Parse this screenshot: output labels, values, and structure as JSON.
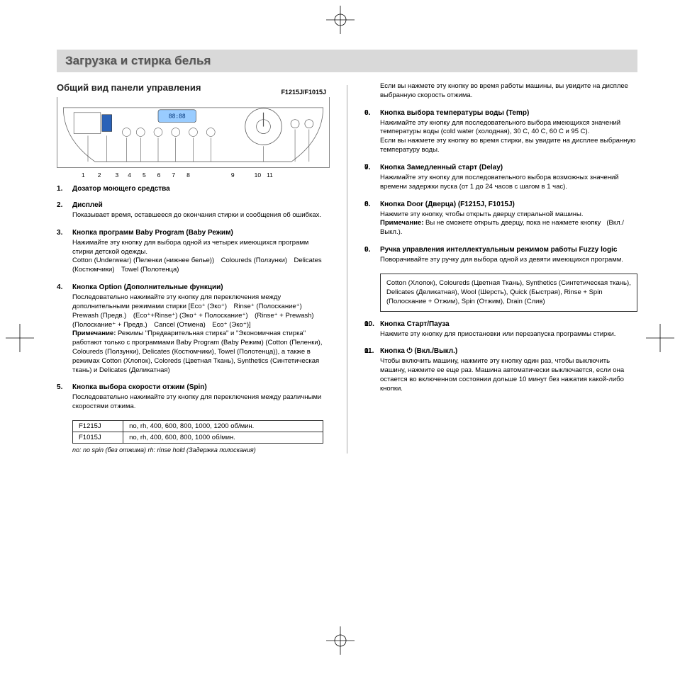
{
  "banner_title": "Загрузка и стирка белья",
  "subtitle": "Общий вид панели управления",
  "model_label": "F1215J/F1015J",
  "callout_numbers": [
    "1",
    "2",
    "3",
    "4",
    "5",
    "6",
    "7",
    "8",
    "9",
    "10",
    "11"
  ],
  "left_items": [
    {
      "title": "Дозатор моющего средства",
      "body": ""
    },
    {
      "title": "Дисплей",
      "body": "Показывает время, оставшееся до окончания стирки и сообщения об ошибках."
    },
    {
      "title": "Кнопка программ Baby Program (Baby Режим)",
      "body": "Нажимайте эту кнопку для выбора одной из четырех имеющихся программ стирки детской одежды.\nCotton (Underwear) (Пеленки (нижнее белье)) Coloureds (Ползунки) Delicates (Костюмчики) Towel (Полотенца)"
    },
    {
      "title": "Кнопка Option (Дополнительные функции)",
      "body": "Последовательно нажимайте эту кнопку для переключения между дополнительными режимами стирки [Eco⁺ (Эко⁺) Rinse⁺ (Полоскание⁺) Prewash (Предв.) (Eco⁺+Rinse⁺) (Эко⁺ + Полоскание⁺) (Rinse⁺ + Prewash) (Полоскание⁺ + Предв.) Cancel (Отмена) Eco⁺ (Эко⁺)]",
      "note": "Режимы \"Предварительная стирка\" и \"Экономичная стирка\" работают только с программами Baby Program (Baby Режим) (Cotton (Пеленки), Coloureds (Ползунки), Delicates (Костюмчики), Towel (Полотенца)), а также в режимах Cotton (Хлопок), Coloreds (Цветная Ткань), Synthetics (Синтетическая ткань) и Delicates (Деликатная)"
    },
    {
      "title": "Кнопка выбора скорости отжим (Spin)",
      "body": "Последовательно нажимайте эту кнопку для переключения между различными скоростями отжима."
    }
  ],
  "spin_table": {
    "rows": [
      [
        "F1215J",
        "no, rh, 400, 600, 800, 1000, 1200 об/мин."
      ],
      [
        "F1015J",
        "no, rh, 400, 600, 800, 1000 об/мин."
      ]
    ]
  },
  "spin_note": "no: no spin (без отжима)  rh: rinse hold (Задержка полоскания)",
  "right_intro": "Если вы нажмете эту кнопку во время работы машины, вы увидите на дисплее выбранную скорость отжима.",
  "right_items": [
    {
      "n": "6",
      "title": "Кнопка выбора температуры воды (Temp)",
      "body": "Нажимайте эту кнопку для последовательного выбора имеющихся значений температуры воды (cold water (холодная), 30 C, 40 C, 60 C и 95 C).\nЕсли вы нажмете эту кнопку во время стирки, вы увидите на дисплее выбранную температуру воды."
    },
    {
      "n": "7",
      "title": "Кнопка Замедленный старт (Delay)",
      "body": "Нажимайте эту кнопку для последовательного выбора возможных значений времени задержки пуска (от 1 до 24 часов с шагом в 1 час)."
    },
    {
      "n": "8",
      "title": "Кнопка Door (Дверца) (F1215J, F1015J)",
      "body": "Нажмите эту кнопку, чтобы открыть дверцу стиральной машины.",
      "note": "Вы не сможете открыть дверцу, пока не нажмете кнопку   (Вкл./Выкл.)."
    },
    {
      "n": "9",
      "title": "Ручка управления интеллектуальным режимом работы Fuzzy logic",
      "body": "Поворачивайте эту ручку для выбора одной из девяти имеющихся программ."
    },
    {
      "n": "10",
      "title": "Кнопка Старт/Пауза",
      "body": "Нажмите эту кнопку для приостановки или перезапуска программы стирки."
    },
    {
      "n": "11",
      "title": "Кнопка ⏻ (Вкл./Выкл.)",
      "body": "Чтобы включить машину, нажмите эту кнопку один раз, чтобы выключить машину, нажмите ее еще раз. Машина автоматически выключается, если она остается во включенном состоянии дольше 10 минут без нажатия какой-либо кнопки."
    }
  ],
  "program_box": "Cotton (Хлопок), Coloureds (Цветная Ткань), Synthetics (Синтетическая ткань), Delicates (Деликатная), Wool (Шерсть), Quick (Быстрая), Rinse + Spin (Полоскание + Отжим), Spin (Отжим), Drain (Слив)",
  "note_label": "Примечание:",
  "colors": {
    "banner_bg": "#d9d9d9",
    "border": "#888888",
    "divider": "#aaaaaa"
  }
}
